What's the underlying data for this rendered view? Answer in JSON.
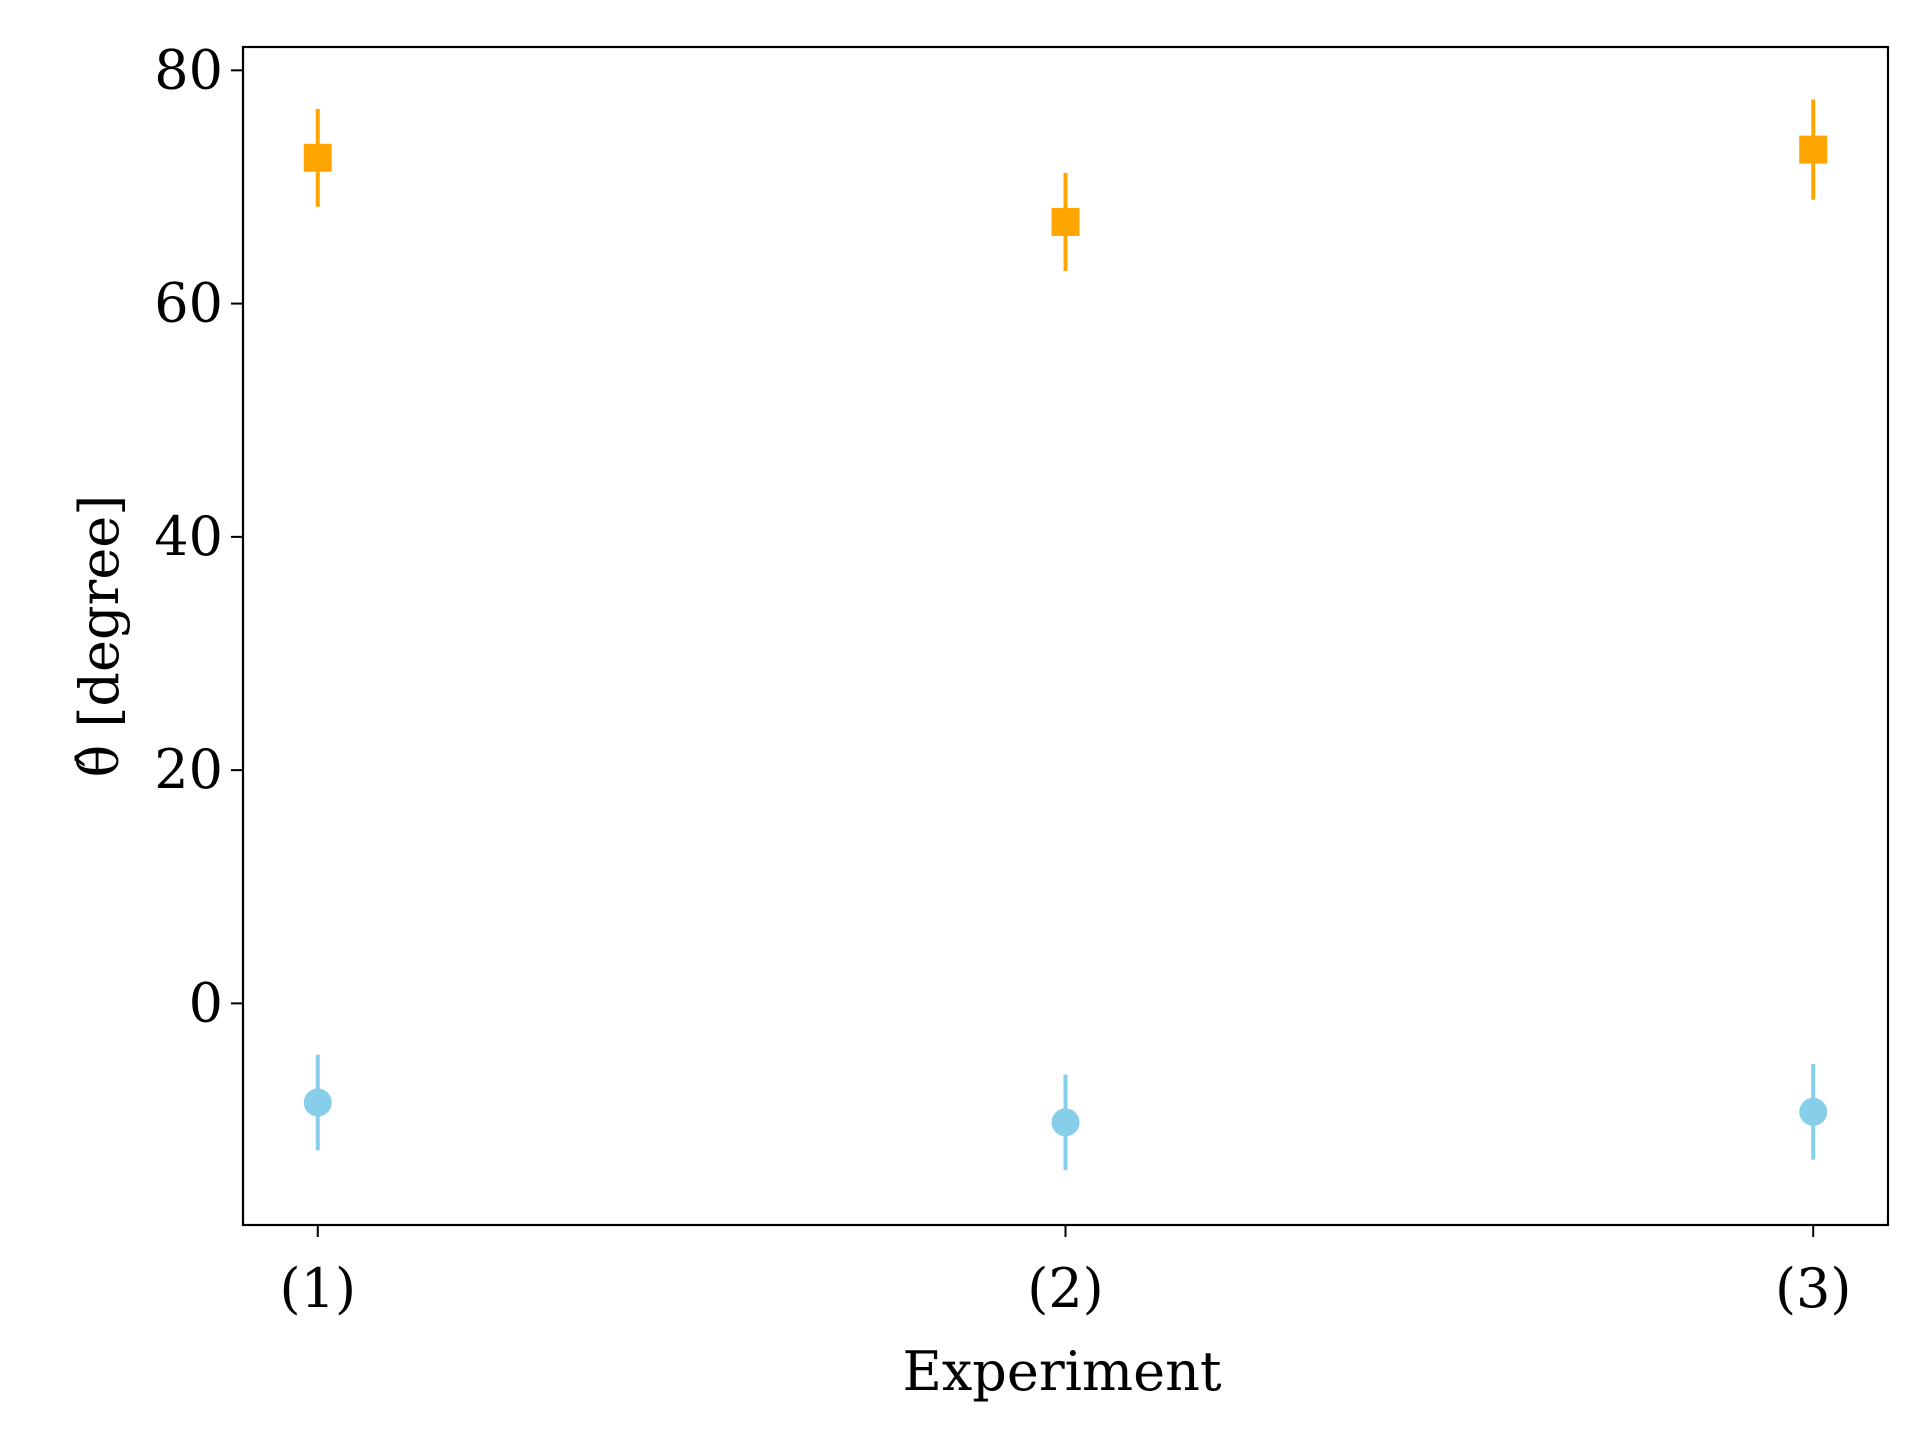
{
  "chart_data": {
    "type": "scatter",
    "categories": [
      "(1)",
      "(2)",
      "(3)"
    ],
    "x": [
      1,
      2,
      3
    ],
    "xlabel": "Experiment",
    "ylabel": "θ̂ [degree]",
    "xlim": [
      0.9,
      3.1
    ],
    "ylim": [
      -19,
      82
    ],
    "yticks": [
      0,
      20,
      40,
      60,
      80
    ],
    "grid": false,
    "series": [
      {
        "marker": "square",
        "color": "#FFA500",
        "values": [
          72.5,
          67.0,
          73.2
        ],
        "errors": [
          4.2,
          4.2,
          4.3
        ]
      },
      {
        "marker": "circle",
        "color": "#87CEEB",
        "values": [
          -8.5,
          -10.2,
          -9.3
        ],
        "errors": [
          4.1,
          4.1,
          4.1
        ]
      }
    ]
  }
}
